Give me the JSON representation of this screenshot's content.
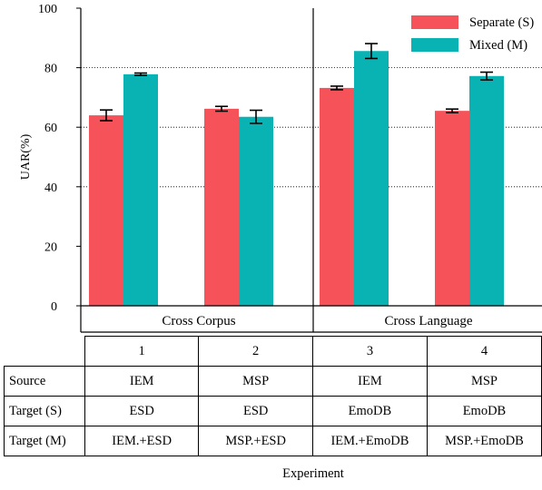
{
  "chart_data": {
    "type": "bar",
    "ylabel": "UAR(%)",
    "xlabel": "Experiment",
    "ylim": [
      0,
      100
    ],
    "yticks": [
      0,
      20,
      40,
      60,
      80,
      100
    ],
    "grid": "horizontal dotted at 40, 60, 80",
    "legend_position": "top-right",
    "groups": [
      "Cross Corpus",
      "Cross Language"
    ],
    "categories": [
      "1",
      "2",
      "3",
      "4"
    ],
    "series": [
      {
        "name": "Separate (S)",
        "color": "#f5525a",
        "values": [
          64.0,
          66.2,
          73.2,
          65.5
        ],
        "errors": [
          1.8,
          0.8,
          0.6,
          0.6
        ]
      },
      {
        "name": "Mixed (M)",
        "color": "#0ab3b3",
        "values": [
          77.8,
          63.5,
          85.6,
          77.2
        ],
        "errors": [
          0.4,
          2.2,
          2.5,
          1.3
        ]
      }
    ]
  },
  "table": {
    "headers": [
      "1",
      "2",
      "3",
      "4"
    ],
    "rows": [
      {
        "label": "Source",
        "cells": [
          "IEM",
          "MSP",
          "IEM",
          "MSP"
        ]
      },
      {
        "label": "Target (S)",
        "cells": [
          "ESD",
          "ESD",
          "EmoDB",
          "EmoDB"
        ]
      },
      {
        "label": "Target (M)",
        "cells": [
          "IEM.+ESD",
          "MSP.+ESD",
          "IEM.+EmoDB",
          "MSP.+EmoDB"
        ]
      }
    ]
  }
}
